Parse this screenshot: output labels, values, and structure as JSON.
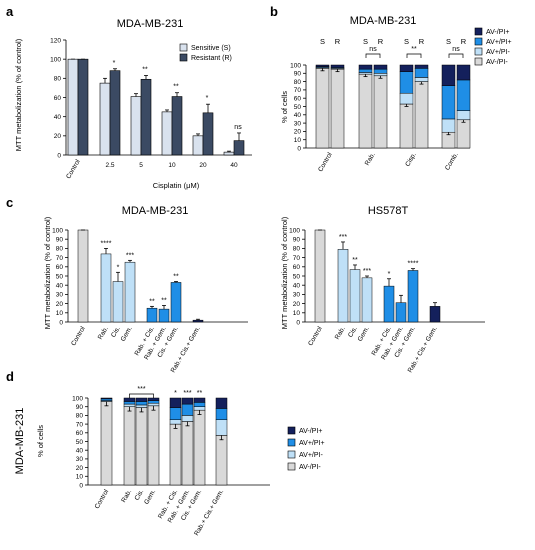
{
  "chart_data": [
    {
      "panel": "a",
      "type": "bar",
      "title": "MDA-MB-231",
      "xlabel": "Cisplatin (μM)",
      "ylabel": "MTT metabolization (% of control)",
      "ylim": [
        0,
        120
      ],
      "categories": [
        "Control",
        "2.5",
        "5",
        "10",
        "20",
        "40"
      ],
      "series": [
        {
          "name": "Sensitive (S)",
          "color": "#d9e2ee",
          "values": [
            100,
            75,
            61,
            45,
            20,
            3
          ],
          "errors": [
            0,
            5,
            3,
            2,
            2,
            1
          ]
        },
        {
          "name": "Resistant (R)",
          "color": "#3b4a63",
          "values": [
            100,
            88,
            79,
            61,
            44,
            15
          ],
          "errors": [
            0,
            2,
            4,
            4,
            9,
            8
          ]
        }
      ],
      "significance": [
        "",
        "*",
        "**",
        "**",
        "*",
        "ns"
      ],
      "legend": "top-right"
    },
    {
      "panel": "b",
      "type": "bar",
      "stacked": true,
      "title": "MDA-MB-231",
      "ylabel": "% of cells",
      "ylim": [
        0,
        100
      ],
      "groups": [
        "Control",
        "Rab.",
        "Cisp.",
        "Comb."
      ],
      "sub_labels": [
        "S",
        "R"
      ],
      "bars": [
        {
          "group": "Control",
          "sub": "S",
          "stack": [
            96,
            1,
            1,
            2
          ]
        },
        {
          "group": "Control",
          "sub": "R",
          "stack": [
            95,
            1,
            1,
            3
          ]
        },
        {
          "group": "Rab.",
          "sub": "S",
          "stack": [
            89,
            2,
            4,
            5
          ]
        },
        {
          "group": "Rab.",
          "sub": "R",
          "stack": [
            87,
            3,
            5,
            5
          ]
        },
        {
          "group": "Cisp.",
          "sub": "S",
          "stack": [
            53,
            13,
            26,
            8
          ]
        },
        {
          "group": "Cisp.",
          "sub": "R",
          "stack": [
            80,
            5,
            11,
            4
          ]
        },
        {
          "group": "Comb.",
          "sub": "S",
          "stack": [
            19,
            16,
            40,
            25
          ]
        },
        {
          "group": "Comb.",
          "sub": "R",
          "stack": [
            34,
            11,
            37,
            18
          ]
        }
      ],
      "stack_order": [
        "AV-/PI-",
        "AV+/PI-",
        "AV+/PI+",
        "AV-/PI+"
      ],
      "brackets": [
        {
          "group": "Rab.",
          "label": "ns"
        },
        {
          "group": "Cisp.",
          "label": "**"
        },
        {
          "group": "Comb.",
          "label": "ns"
        }
      ],
      "legend_labels": [
        "AV-/PI+",
        "AV+/PI+",
        "AV+/PI-",
        "AV-/PI-"
      ],
      "legend_colors": [
        "#14205c",
        "#1f8ee6",
        "#bfe0f7",
        "#d9d9d9"
      ],
      "legend": "top-right"
    },
    {
      "panel": "c",
      "type": "bar",
      "title": "MDA-MB-231",
      "ylabel": "MTT metabolization (% of control)",
      "ylim": [
        0,
        100
      ],
      "categories": [
        "Control",
        "Rab.",
        "Cis.",
        "Gem.",
        "Rab. + Cis.",
        "Rab. + Gem.",
        "Cis. + Gem.",
        "Rab.+ Cis.+ Gem."
      ],
      "values": [
        100,
        74,
        44,
        65,
        15,
        14,
        43,
        2
      ],
      "errors": [
        0,
        6,
        10,
        2,
        2,
        4,
        1,
        1
      ],
      "colors": [
        "#d9d9d9",
        "#bfe0f7",
        "#bfe0f7",
        "#bfe0f7",
        "#1f8ee6",
        "#1f8ee6",
        "#1f8ee6",
        "#14205c"
      ],
      "significance": [
        "",
        "****",
        "*",
        "***",
        "**",
        "**",
        "**",
        ""
      ]
    },
    {
      "panel": "c",
      "type": "bar",
      "title": "HS578T",
      "ylabel": "MTT metabolization (% of control)",
      "ylim": [
        0,
        100
      ],
      "categories": [
        "Control",
        "Rab.",
        "Cis.",
        "Gem.",
        "Rab. + Cis.",
        "Rab. + Gem.",
        "Cis. + Gem.",
        "Rab.+ Cis.+ Gem."
      ],
      "values": [
        100,
        79,
        57,
        48,
        39,
        21,
        56,
        17
      ],
      "errors": [
        0,
        8,
        5,
        2,
        8,
        8,
        2,
        4
      ],
      "colors": [
        "#d9d9d9",
        "#bfe0f7",
        "#bfe0f7",
        "#bfe0f7",
        "#1f8ee6",
        "#1f8ee6",
        "#1f8ee6",
        "#14205c"
      ],
      "significance": [
        "",
        "***",
        "**",
        "***",
        "*",
        "",
        "****",
        ""
      ]
    },
    {
      "panel": "d",
      "type": "bar",
      "stacked": true,
      "ylabel": "% of cells",
      "side_label": "MDA-MB-231",
      "ylim": [
        0,
        100
      ],
      "categories": [
        "Control",
        "Rab.",
        "Cis.",
        "Gem.",
        "Rab. + Cis.",
        "Rab. + Gem.",
        "Cis. + Gem.",
        "Rab.+ Cis.+ Gem."
      ],
      "stack_order": [
        "AV-/PI-",
        "AV+/PI-",
        "AV+/PI+",
        "AV-/PI+"
      ],
      "stacks": [
        [
          96,
          1,
          2,
          1
        ],
        [
          90,
          3,
          3,
          4
        ],
        [
          89,
          3,
          4,
          4
        ],
        [
          91,
          3,
          3,
          3
        ],
        [
          70,
          5,
          14,
          11
        ],
        [
          73,
          7,
          13,
          7
        ],
        [
          86,
          4,
          5,
          5
        ],
        [
          57,
          18,
          13,
          12
        ]
      ],
      "significance": [
        "",
        "",
        "",
        "",
        "*",
        "***",
        "**",
        ""
      ],
      "bracket_label": "***",
      "legend_labels": [
        "AV-/PI+",
        "AV+/PI+",
        "AV+/PI-",
        "AV-/PI-"
      ],
      "legend_colors": [
        "#14205c",
        "#1f8ee6",
        "#bfe0f7",
        "#d9d9d9"
      ],
      "legend": "right"
    }
  ],
  "panel_letters": [
    "a",
    "b",
    "c",
    "d"
  ]
}
